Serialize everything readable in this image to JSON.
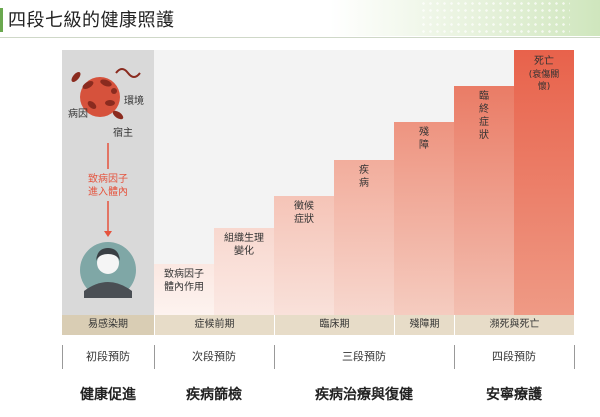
{
  "title": "四段七級的健康照護",
  "colors": {
    "accent_green": "#6aa84f",
    "arrow_red": "#e5533d"
  },
  "infection": {
    "labels": {
      "pathogen": "病因",
      "environment": "環境",
      "host": "宿主"
    },
    "cause_line1": "致病因子",
    "cause_line2": "進入體內",
    "icons": [
      "bacteria-icon",
      "person-avatar-icon"
    ]
  },
  "bars": [
    {
      "label_lines": [
        "致病因子",
        "體內作用"
      ],
      "level": 1
    },
    {
      "label_lines": [
        "組織生理",
        "變化"
      ],
      "level": 2
    },
    {
      "label_lines": [
        "徵候",
        "症狀"
      ],
      "level": 3
    },
    {
      "label_chars": [
        "疾",
        "病"
      ],
      "level": 4
    },
    {
      "label_chars": [
        "殘",
        "障"
      ],
      "level": 5
    },
    {
      "label_chars": [
        "臨",
        "終",
        "症",
        "狀"
      ],
      "level": 6
    },
    {
      "label_top": "死亡",
      "label_lines": [
        "(衰傷關",
        "懷)"
      ],
      "level": 7
    }
  ],
  "stages": [
    "易感染期",
    "症候前期",
    "臨床期",
    "殘障期",
    "瀕死與死亡"
  ],
  "prevention": [
    "初段預防",
    "次段預防",
    "三段預防",
    "四段預防"
  ],
  "categories": [
    "健康促進",
    "疾病篩檢",
    "疾病治療與復健",
    "安寧療護"
  ]
}
